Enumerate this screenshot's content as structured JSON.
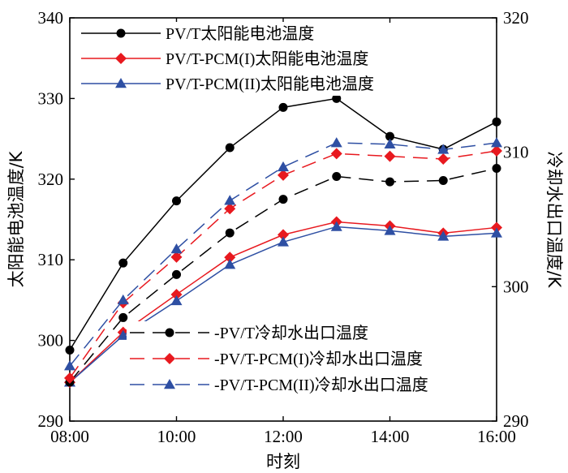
{
  "chart_data": {
    "type": "line",
    "x": [
      "08:00",
      "09:00",
      "10:00",
      "11:00",
      "12:00",
      "13:00",
      "14:00",
      "15:00",
      "16:00"
    ],
    "xlabel": "时刻",
    "x_ticks": [
      "08:00",
      "10:00",
      "12:00",
      "14:00",
      "16:00"
    ],
    "ylabel_left": "太阳能电池温度/K",
    "ylabel_right": "冷却水出口温度/K",
    "ylim_left": [
      290,
      340
    ],
    "ylim_right": [
      290,
      320
    ],
    "y_ticks_left": [
      "290",
      "300",
      "310",
      "320",
      "330",
      "340"
    ],
    "y_ticks_right": [
      "290",
      "300",
      "310",
      "320"
    ],
    "grid": false,
    "legend_top_placement": "top-left",
    "legend_bottom_placement": "bottom-right",
    "series": [
      {
        "name": "PV/T太阳能电池温度",
        "axis": "left",
        "style": "solid",
        "marker": "circle",
        "color": "#000000",
        "values": [
          298.8,
          309.6,
          317.3,
          323.9,
          328.9,
          330.0,
          325.3,
          323.7,
          327.1
        ]
      },
      {
        "name": "PV/T-PCM(I)太阳能电池温度",
        "axis": "left",
        "style": "solid",
        "marker": "diamond",
        "color": "#e8191f",
        "values": [
          294.8,
          301.0,
          305.7,
          310.3,
          313.1,
          314.7,
          314.2,
          313.3,
          314.0
        ]
      },
      {
        "name": "PV/T-PCM(II)太阳能电池温度",
        "axis": "left",
        "style": "solid",
        "marker": "triangle",
        "color": "#2e4fa3",
        "values": [
          294.8,
          300.6,
          304.9,
          309.4,
          312.2,
          314.1,
          313.6,
          312.9,
          313.3
        ]
      },
      {
        "name": "PV/T冷却水出口温度",
        "axis": "right",
        "style": "dashed",
        "marker": "circle",
        "color": "#000000",
        "values": [
          292.9,
          297.7,
          300.9,
          304.0,
          306.5,
          308.2,
          307.8,
          307.9,
          308.8
        ]
      },
      {
        "name": "PV/T-PCM(I)冷却水出口温度",
        "axis": "right",
        "style": "dashed",
        "marker": "diamond",
        "color": "#e8191f",
        "values": [
          293.2,
          298.8,
          302.2,
          305.8,
          308.3,
          309.9,
          309.7,
          309.5,
          310.1
        ]
      },
      {
        "name": "PV/T-PCM(II)冷却水出口温度",
        "axis": "right",
        "style": "dashed",
        "marker": "triangle",
        "color": "#2e4fa3",
        "values": [
          294.1,
          299.0,
          302.8,
          306.4,
          308.9,
          310.7,
          310.6,
          310.2,
          310.7
        ]
      }
    ]
  }
}
